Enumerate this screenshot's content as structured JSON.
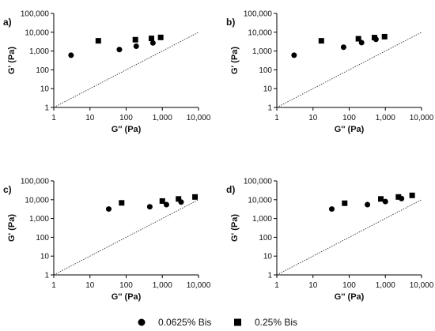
{
  "chart_data": [
    {
      "panel": "a)",
      "type": "scatter",
      "xlabel": "G'' (Pa)",
      "ylabel": "G' (Pa)",
      "xscale": "log",
      "yscale": "log",
      "xlim": [
        1,
        10000
      ],
      "ylim": [
        1,
        100000
      ],
      "xticks": [
        "1",
        "10",
        "100",
        "1,000",
        "10,000"
      ],
      "yticks": [
        "1",
        "10",
        "100",
        "1,000",
        "10,000",
        "100,000"
      ],
      "reference_line": "y = x (dotted)",
      "series": [
        {
          "name": "0.0625% Bis",
          "marker": "circle",
          "points": [
            [
              3,
              600
            ],
            [
              65,
              1200
            ],
            [
              190,
              1800
            ],
            [
              550,
              2700
            ]
          ]
        },
        {
          "name": "0.25% Bis",
          "marker": "square",
          "points": [
            [
              17,
              3500
            ],
            [
              180,
              4000
            ],
            [
              500,
              4700
            ],
            [
              900,
              5300
            ]
          ]
        }
      ]
    },
    {
      "panel": "b)",
      "type": "scatter",
      "xlabel": "G'' (Pa)",
      "ylabel": "G' (Pa)",
      "xscale": "log",
      "yscale": "log",
      "xlim": [
        1,
        10000
      ],
      "ylim": [
        1,
        100000
      ],
      "xticks": [
        "1",
        "10",
        "100",
        "1,000",
        "10,000"
      ],
      "yticks": [
        "1",
        "10",
        "100",
        "1,000",
        "10,000",
        "100,000"
      ],
      "reference_line": "y = x (dotted)",
      "series": [
        {
          "name": "0.0625% Bis",
          "marker": "circle",
          "points": [
            [
              3,
              600
            ],
            [
              70,
              1600
            ],
            [
              220,
              2800
            ],
            [
              550,
              4200
            ]
          ]
        },
        {
          "name": "0.25% Bis",
          "marker": "square",
          "points": [
            [
              17,
              3500
            ],
            [
              180,
              4500
            ],
            [
              500,
              5200
            ],
            [
              950,
              5800
            ]
          ]
        }
      ]
    },
    {
      "panel": "c)",
      "type": "scatter",
      "xlabel": "G'' (Pa)",
      "ylabel": "G' (Pa)",
      "xscale": "log",
      "yscale": "log",
      "xlim": [
        1,
        10000
      ],
      "ylim": [
        1,
        100000
      ],
      "xticks": [
        "1",
        "10",
        "100",
        "1,000",
        "10,000"
      ],
      "yticks": [
        "1",
        "10",
        "100",
        "1,000",
        "10,000",
        "100,000"
      ],
      "reference_line": "y = x (dotted)",
      "series": [
        {
          "name": "0.0625% Bis",
          "marker": "circle",
          "points": [
            [
              33,
              3200
            ],
            [
              450,
              4200
            ],
            [
              1300,
              5500
            ],
            [
              3300,
              7500
            ]
          ]
        },
        {
          "name": "0.25% Bis",
          "marker": "square",
          "points": [
            [
              75,
              6800
            ],
            [
              1000,
              8500
            ],
            [
              2800,
              11000
            ],
            [
              8000,
              14000
            ]
          ]
        }
      ]
    },
    {
      "panel": "d)",
      "type": "scatter",
      "xlabel": "G'' (Pa)",
      "ylabel": "G' (Pa)",
      "xscale": "log",
      "yscale": "log",
      "xlim": [
        1,
        10000
      ],
      "ylim": [
        1,
        100000
      ],
      "xticks": [
        "1",
        "10",
        "100",
        "1,000",
        "10,000"
      ],
      "yticks": [
        "1",
        "10",
        "100",
        "1,000",
        "10,000",
        "100,000"
      ],
      "reference_line": "y = x (dotted)",
      "series": [
        {
          "name": "0.0625% Bis",
          "marker": "circle",
          "points": [
            [
              33,
              3200
            ],
            [
              320,
              5500
            ],
            [
              1000,
              8000
            ],
            [
              2800,
              11500
            ]
          ]
        },
        {
          "name": "0.25% Bis",
          "marker": "square",
          "points": [
            [
              75,
              6500
            ],
            [
              750,
              11000
            ],
            [
              2300,
              14000
            ],
            [
              5500,
              17000
            ]
          ]
        }
      ]
    }
  ],
  "legend": {
    "placement": "bottom-center",
    "items": [
      {
        "label": "0.0625% Bis",
        "marker": "circle"
      },
      {
        "label": "0.25% Bis",
        "marker": "square"
      }
    ]
  }
}
